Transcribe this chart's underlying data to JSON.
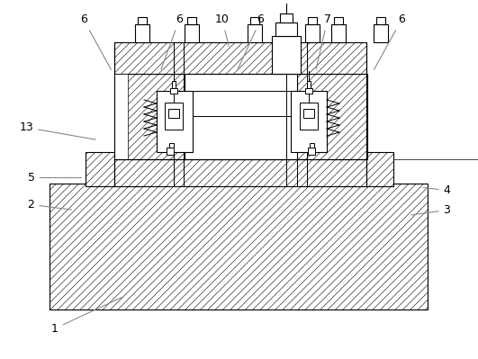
{
  "background_color": "#ffffff",
  "line_color": "#000000",
  "lw": 0.8,
  "hatch_lw": 0.4,
  "label_fontsize": 9,
  "figsize": [
    5.31,
    3.99
  ],
  "dpi": 100,
  "labels_info": [
    [
      "1",
      [
        0.115,
        0.085
      ],
      [
        0.26,
        0.175
      ]
    ],
    [
      "2",
      [
        0.065,
        0.43
      ],
      [
        0.155,
        0.415
      ]
    ],
    [
      "3",
      [
        0.935,
        0.415
      ],
      [
        0.855,
        0.4
      ]
    ],
    [
      "4",
      [
        0.935,
        0.47
      ],
      [
        0.88,
        0.478
      ]
    ],
    [
      "5",
      [
        0.065,
        0.505
      ],
      [
        0.175,
        0.505
      ]
    ],
    [
      "6",
      [
        0.175,
        0.945
      ],
      [
        0.235,
        0.8
      ]
    ],
    [
      "6",
      [
        0.375,
        0.945
      ],
      [
        0.335,
        0.8
      ]
    ],
    [
      "6",
      [
        0.545,
        0.945
      ],
      [
        0.495,
        0.8
      ]
    ],
    [
      "6",
      [
        0.84,
        0.945
      ],
      [
        0.78,
        0.8
      ]
    ],
    [
      "7",
      [
        0.685,
        0.945
      ],
      [
        0.66,
        0.8
      ]
    ],
    [
      "10",
      [
        0.465,
        0.945
      ],
      [
        0.48,
        0.865
      ]
    ],
    [
      "13",
      [
        0.055,
        0.645
      ],
      [
        0.205,
        0.61
      ]
    ]
  ]
}
